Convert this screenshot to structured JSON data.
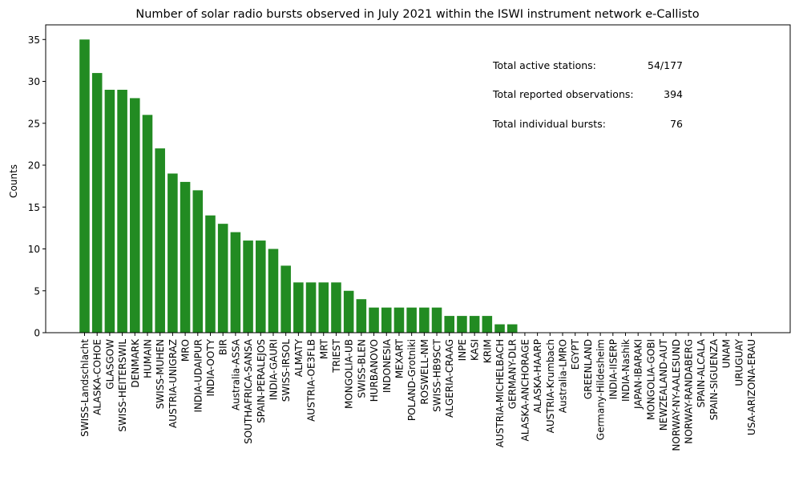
{
  "chart_data": {
    "type": "bar",
    "title": "Number of solar radio bursts observed in July 2021 within the ISWI instrument network e-Callisto",
    "xlabel": "",
    "ylabel": "Counts",
    "ylim": [
      0,
      36.75
    ],
    "yticks": [
      0,
      5,
      10,
      15,
      20,
      25,
      30,
      35
    ],
    "grid": false,
    "bar_color": "#228b22",
    "categories": [
      "SWISS-Landschlacht",
      "ALASKA-COHOE",
      "GLASGOW",
      "SWISS-HEITERSWIL",
      "DENMARK",
      "HUMAIN",
      "SWISS-MUHEN",
      "AUSTRIA-UNIGRAZ",
      "MRO",
      "INDIA-UDAIPUR",
      "INDIA-OOTY",
      "BIR",
      "Australia-ASSA",
      "SOUTHAFRICA-SANSA",
      "SPAIN-PERALEJOS",
      "INDIA-GAURI",
      "SWISS-IRSOL",
      "ALMATY",
      "AUSTRIA-OE3FLB",
      "MRT",
      "TRIEST",
      "MONGOLIA-UB",
      "SWISS-BLEN",
      "HURBANOVO",
      "INDONESIA",
      "MEXART",
      "POLAND-Grotniki",
      "ROSWELL-NM",
      "SWISS-HB9SCT",
      "ALGERIA-CRAAG",
      "INPE",
      "KASI",
      "KRIM",
      "AUSTRIA-MICHELBACH",
      "GERMANY-DLR",
      "ALASKA-ANCHORAGE",
      "ALASKA-HAARP",
      "AUSTRIA-Krumbach",
      "Australia-LMRO",
      "EGYPT",
      "GREENLAND",
      "Germany-Hildesheim",
      "INDIA-IISERP",
      "INDIA-Nashik",
      "JAPAN-IBARAKI",
      "MONGOLIA-GOBI",
      "NEWZEALAND-AUT",
      "NORWAY-NY-AALESUND",
      "NORWAY-RANDABERG",
      "SPAIN-ALCALA",
      "SPAIN-SIGUENZA",
      "UNAM",
      "URUGUAY",
      "USA-ARIZONA-ERAU"
    ],
    "values": [
      35,
      31,
      29,
      29,
      28,
      26,
      22,
      19,
      18,
      17,
      14,
      13,
      12,
      11,
      11,
      10,
      8,
      6,
      6,
      6,
      6,
      5,
      4,
      3,
      3,
      3,
      3,
      3,
      3,
      2,
      2,
      2,
      2,
      1,
      1,
      0,
      0,
      0,
      0,
      0,
      0,
      0,
      0,
      0,
      0,
      0,
      0,
      0,
      0,
      0,
      0,
      0,
      0,
      0
    ],
    "annotations": [
      {
        "label": "Total active stations:",
        "value": "54/177"
      },
      {
        "label": "Total reported observations:",
        "value": "394"
      },
      {
        "label": "Total individual bursts:",
        "value": "76"
      }
    ]
  }
}
